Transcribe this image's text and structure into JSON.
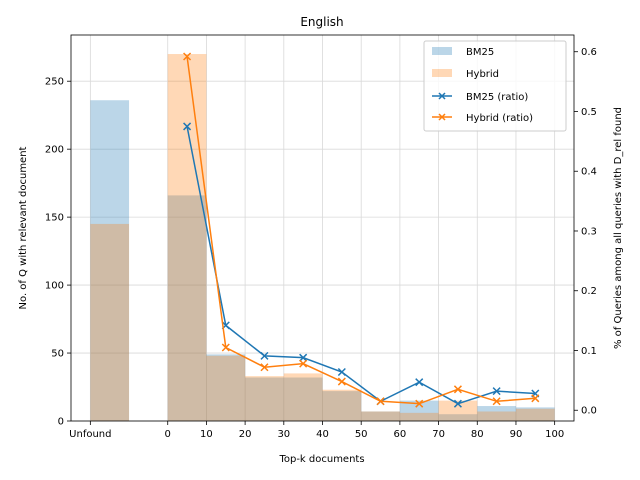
{
  "chart_data": {
    "type": "bar",
    "title": "English",
    "xlabel": "Top-k documents",
    "ylabel_left": "No. of Q with relevant document",
    "ylabel_right": "% of Queries among all queries with D_rel found",
    "x_tick_labels": [
      "Unfound",
      "0",
      "10",
      "20",
      "30",
      "40",
      "50",
      "60",
      "70",
      "80",
      "90",
      "100"
    ],
    "bins": [
      "Unfound",
      "0-10",
      "10-20",
      "20-30",
      "30-40",
      "40-50",
      "50-60",
      "60-70",
      "70-80",
      "80-90",
      "90-100"
    ],
    "y_left_ticks": [
      0,
      50,
      100,
      150,
      200,
      250
    ],
    "y_right_ticks": [
      0.0,
      0.1,
      0.2,
      0.3,
      0.4,
      0.5,
      0.6
    ],
    "ylim_left": [
      0,
      284
    ],
    "ylim_right": [
      -0.018,
      0.628
    ],
    "grid": true,
    "legend_position": "top-right",
    "bar_series": [
      {
        "name": "BM25",
        "color": "#1f77b4",
        "values": [
          236,
          166,
          49,
          32,
          32,
          22,
          7,
          15,
          5,
          11,
          10
        ]
      },
      {
        "name": "Hybrid",
        "color": "#ff7f0e",
        "values": [
          145,
          270,
          48,
          33,
          35,
          23,
          7,
          6,
          15,
          7,
          9
        ]
      }
    ],
    "line_x": [
      5,
      15,
      25,
      35,
      45,
      55,
      65,
      75,
      85,
      95
    ],
    "line_series": [
      {
        "name": "BM25 (ratio)",
        "color": "#1f77b4",
        "values": [
          0.475,
          0.142,
          0.091,
          0.088,
          0.064,
          0.015,
          0.047,
          0.011,
          0.032,
          0.028
        ]
      },
      {
        "name": "Hybrid (ratio)",
        "color": "#ff7f0e",
        "values": [
          0.592,
          0.105,
          0.072,
          0.078,
          0.048,
          0.015,
          0.011,
          0.035,
          0.015,
          0.02
        ]
      }
    ]
  }
}
